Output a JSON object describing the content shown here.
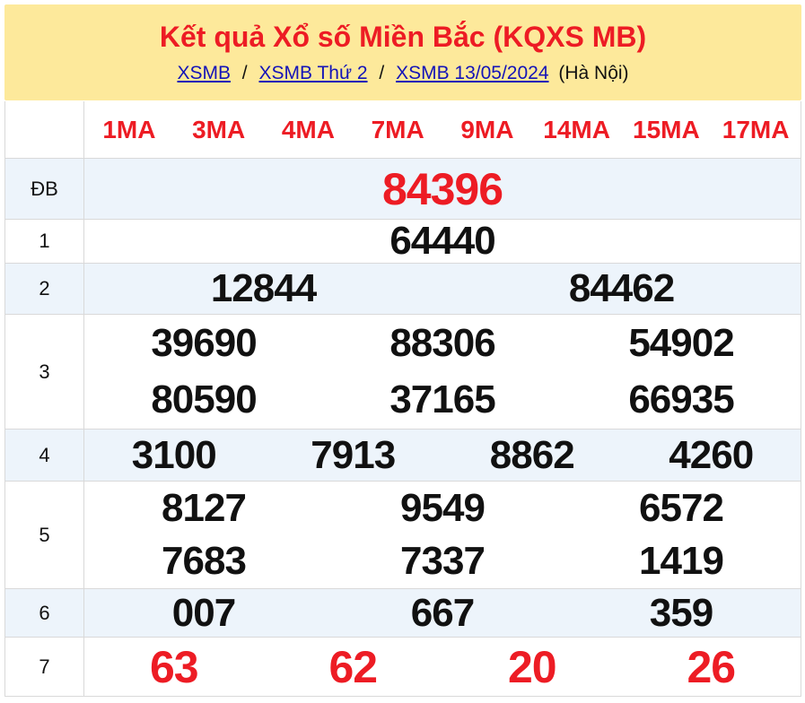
{
  "header": {
    "title": "Kết quả Xổ số Miền Bắc (KQXS MB)",
    "breadcrumb": {
      "links": [
        "XSMB",
        "XSMB Thứ 2",
        "XSMB 13/05/2024"
      ],
      "separator": "/",
      "suffix": "(Hà Nội)"
    }
  },
  "table": {
    "column_headers": [
      "1MA",
      "3MA",
      "4MA",
      "7MA",
      "9MA",
      "14MA",
      "15MA",
      "17MA"
    ],
    "rows": [
      {
        "label": "ĐB",
        "lines": [
          [
            "84396"
          ]
        ],
        "highlight": "red",
        "size": "xl",
        "shade": true
      },
      {
        "label": "1",
        "lines": [
          [
            "64440"
          ]
        ],
        "highlight": "black",
        "size": "md",
        "shade": false
      },
      {
        "label": "2",
        "lines": [
          [
            "12844",
            "84462"
          ]
        ],
        "highlight": "black",
        "size": "md",
        "shade": true
      },
      {
        "label": "3",
        "lines": [
          [
            "39690",
            "88306",
            "54902"
          ],
          [
            "80590",
            "37165",
            "66935"
          ]
        ],
        "highlight": "black",
        "size": "md",
        "shade": false
      },
      {
        "label": "4",
        "lines": [
          [
            "3100",
            "7913",
            "8862",
            "4260"
          ]
        ],
        "highlight": "black",
        "size": "md",
        "shade": true
      },
      {
        "label": "5",
        "lines": [
          [
            "8127",
            "9549",
            "6572"
          ],
          [
            "7683",
            "7337",
            "1419"
          ]
        ],
        "highlight": "black",
        "size": "md",
        "shade": false
      },
      {
        "label": "6",
        "lines": [
          [
            "007",
            "667",
            "359"
          ]
        ],
        "highlight": "black",
        "size": "md",
        "shade": true
      },
      {
        "label": "7",
        "lines": [
          [
            "63",
            "62",
            "20",
            "26"
          ]
        ],
        "highlight": "red",
        "size": "lg",
        "shade": false
      }
    ]
  },
  "colors": {
    "header_background": "#fde99b",
    "accent_red": "#ed1c24",
    "link_blue": "#1414b8",
    "row_shade": "#edf4fb",
    "border": "#d9d9d9"
  }
}
